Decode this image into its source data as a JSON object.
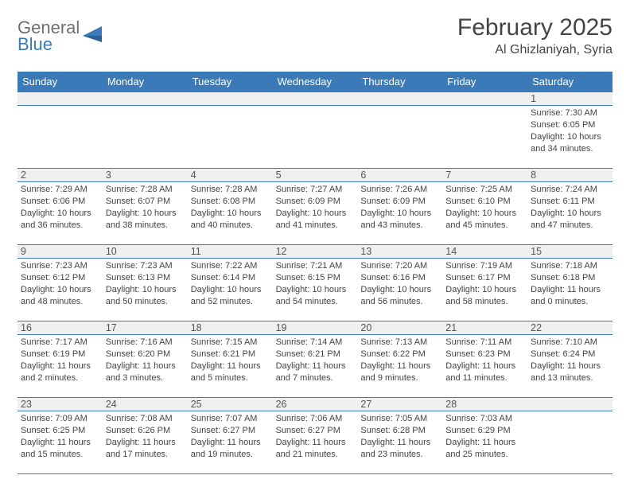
{
  "brand": {
    "part1": "General",
    "part2": "Blue"
  },
  "title": "February 2025",
  "location": "Al Ghizlaniyah, Syria",
  "colors": {
    "header_bg": "#3a7ab8",
    "header_text": "#ffffff",
    "daynum_bg": "#efefef",
    "border": "#3a7ab8",
    "body_text": "#444444",
    "title_text": "#454545",
    "logo_gray": "#6f6f6f",
    "logo_blue": "#3a7ab8",
    "background": "#ffffff"
  },
  "typography": {
    "title_fontsize": 30,
    "location_fontsize": 16,
    "header_fontsize": 13,
    "daynum_fontsize": 12.5,
    "info_fontsize": 11,
    "logo_fontsize": 22
  },
  "day_names": [
    "Sunday",
    "Monday",
    "Tuesday",
    "Wednesday",
    "Thursday",
    "Friday",
    "Saturday"
  ],
  "weeks": [
    [
      {
        "n": "",
        "sunrise": "",
        "sunset": "",
        "daylight": ""
      },
      {
        "n": "",
        "sunrise": "",
        "sunset": "",
        "daylight": ""
      },
      {
        "n": "",
        "sunrise": "",
        "sunset": "",
        "daylight": ""
      },
      {
        "n": "",
        "sunrise": "",
        "sunset": "",
        "daylight": ""
      },
      {
        "n": "",
        "sunrise": "",
        "sunset": "",
        "daylight": ""
      },
      {
        "n": "",
        "sunrise": "",
        "sunset": "",
        "daylight": ""
      },
      {
        "n": "1",
        "sunrise": "Sunrise: 7:30 AM",
        "sunset": "Sunset: 6:05 PM",
        "daylight": "Daylight: 10 hours and 34 minutes."
      }
    ],
    [
      {
        "n": "2",
        "sunrise": "Sunrise: 7:29 AM",
        "sunset": "Sunset: 6:06 PM",
        "daylight": "Daylight: 10 hours and 36 minutes."
      },
      {
        "n": "3",
        "sunrise": "Sunrise: 7:28 AM",
        "sunset": "Sunset: 6:07 PM",
        "daylight": "Daylight: 10 hours and 38 minutes."
      },
      {
        "n": "4",
        "sunrise": "Sunrise: 7:28 AM",
        "sunset": "Sunset: 6:08 PM",
        "daylight": "Daylight: 10 hours and 40 minutes."
      },
      {
        "n": "5",
        "sunrise": "Sunrise: 7:27 AM",
        "sunset": "Sunset: 6:09 PM",
        "daylight": "Daylight: 10 hours and 41 minutes."
      },
      {
        "n": "6",
        "sunrise": "Sunrise: 7:26 AM",
        "sunset": "Sunset: 6:09 PM",
        "daylight": "Daylight: 10 hours and 43 minutes."
      },
      {
        "n": "7",
        "sunrise": "Sunrise: 7:25 AM",
        "sunset": "Sunset: 6:10 PM",
        "daylight": "Daylight: 10 hours and 45 minutes."
      },
      {
        "n": "8",
        "sunrise": "Sunrise: 7:24 AM",
        "sunset": "Sunset: 6:11 PM",
        "daylight": "Daylight: 10 hours and 47 minutes."
      }
    ],
    [
      {
        "n": "9",
        "sunrise": "Sunrise: 7:23 AM",
        "sunset": "Sunset: 6:12 PM",
        "daylight": "Daylight: 10 hours and 48 minutes."
      },
      {
        "n": "10",
        "sunrise": "Sunrise: 7:23 AM",
        "sunset": "Sunset: 6:13 PM",
        "daylight": "Daylight: 10 hours and 50 minutes."
      },
      {
        "n": "11",
        "sunrise": "Sunrise: 7:22 AM",
        "sunset": "Sunset: 6:14 PM",
        "daylight": "Daylight: 10 hours and 52 minutes."
      },
      {
        "n": "12",
        "sunrise": "Sunrise: 7:21 AM",
        "sunset": "Sunset: 6:15 PM",
        "daylight": "Daylight: 10 hours and 54 minutes."
      },
      {
        "n": "13",
        "sunrise": "Sunrise: 7:20 AM",
        "sunset": "Sunset: 6:16 PM",
        "daylight": "Daylight: 10 hours and 56 minutes."
      },
      {
        "n": "14",
        "sunrise": "Sunrise: 7:19 AM",
        "sunset": "Sunset: 6:17 PM",
        "daylight": "Daylight: 10 hours and 58 minutes."
      },
      {
        "n": "15",
        "sunrise": "Sunrise: 7:18 AM",
        "sunset": "Sunset: 6:18 PM",
        "daylight": "Daylight: 11 hours and 0 minutes."
      }
    ],
    [
      {
        "n": "16",
        "sunrise": "Sunrise: 7:17 AM",
        "sunset": "Sunset: 6:19 PM",
        "daylight": "Daylight: 11 hours and 2 minutes."
      },
      {
        "n": "17",
        "sunrise": "Sunrise: 7:16 AM",
        "sunset": "Sunset: 6:20 PM",
        "daylight": "Daylight: 11 hours and 3 minutes."
      },
      {
        "n": "18",
        "sunrise": "Sunrise: 7:15 AM",
        "sunset": "Sunset: 6:21 PM",
        "daylight": "Daylight: 11 hours and 5 minutes."
      },
      {
        "n": "19",
        "sunrise": "Sunrise: 7:14 AM",
        "sunset": "Sunset: 6:21 PM",
        "daylight": "Daylight: 11 hours and 7 minutes."
      },
      {
        "n": "20",
        "sunrise": "Sunrise: 7:13 AM",
        "sunset": "Sunset: 6:22 PM",
        "daylight": "Daylight: 11 hours and 9 minutes."
      },
      {
        "n": "21",
        "sunrise": "Sunrise: 7:11 AM",
        "sunset": "Sunset: 6:23 PM",
        "daylight": "Daylight: 11 hours and 11 minutes."
      },
      {
        "n": "22",
        "sunrise": "Sunrise: 7:10 AM",
        "sunset": "Sunset: 6:24 PM",
        "daylight": "Daylight: 11 hours and 13 minutes."
      }
    ],
    [
      {
        "n": "23",
        "sunrise": "Sunrise: 7:09 AM",
        "sunset": "Sunset: 6:25 PM",
        "daylight": "Daylight: 11 hours and 15 minutes."
      },
      {
        "n": "24",
        "sunrise": "Sunrise: 7:08 AM",
        "sunset": "Sunset: 6:26 PM",
        "daylight": "Daylight: 11 hours and 17 minutes."
      },
      {
        "n": "25",
        "sunrise": "Sunrise: 7:07 AM",
        "sunset": "Sunset: 6:27 PM",
        "daylight": "Daylight: 11 hours and 19 minutes."
      },
      {
        "n": "26",
        "sunrise": "Sunrise: 7:06 AM",
        "sunset": "Sunset: 6:27 PM",
        "daylight": "Daylight: 11 hours and 21 minutes."
      },
      {
        "n": "27",
        "sunrise": "Sunrise: 7:05 AM",
        "sunset": "Sunset: 6:28 PM",
        "daylight": "Daylight: 11 hours and 23 minutes."
      },
      {
        "n": "28",
        "sunrise": "Sunrise: 7:03 AM",
        "sunset": "Sunset: 6:29 PM",
        "daylight": "Daylight: 11 hours and 25 minutes."
      },
      {
        "n": "",
        "sunrise": "",
        "sunset": "",
        "daylight": ""
      }
    ]
  ]
}
